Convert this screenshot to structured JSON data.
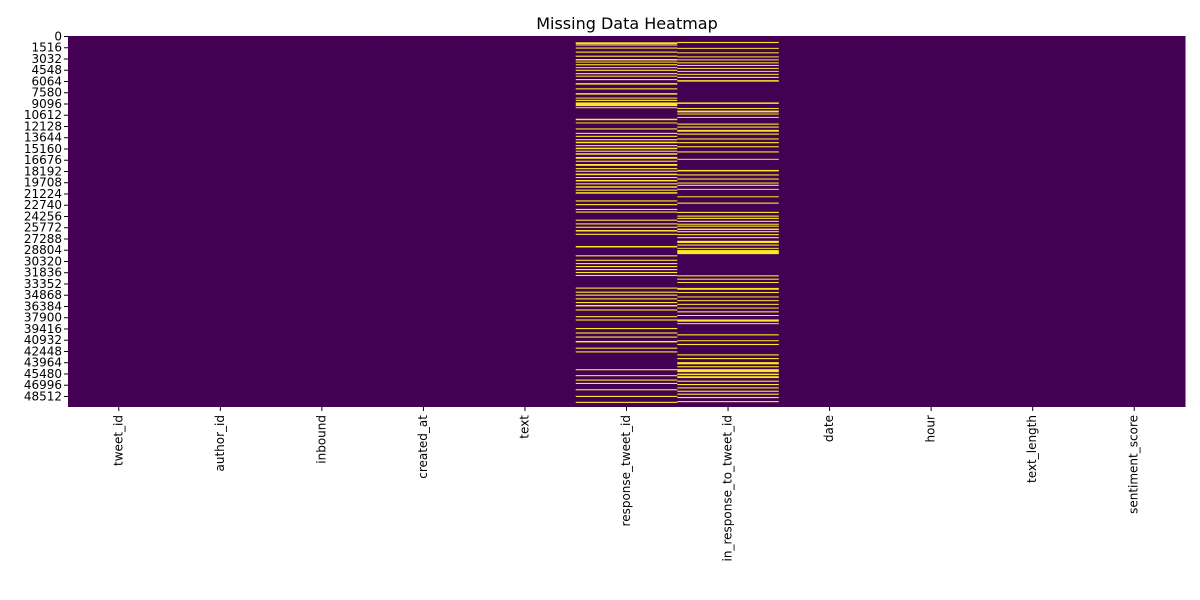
{
  "chart_data": {
    "type": "heatmap",
    "title": "Missing Data Heatmap",
    "xlabel": "",
    "ylabel": "",
    "columns": [
      "tweet_id",
      "author_id",
      "inbound",
      "created_at",
      "text",
      "response_tweet_id",
      "in_response_to_tweet_id",
      "date",
      "hour",
      "text_length",
      "sentiment_score"
    ],
    "y_ticks": [
      "0",
      "1516",
      "3032",
      "4548",
      "6064",
      "7580",
      "9096",
      "10612",
      "12128",
      "13644",
      "15160",
      "16676",
      "18192",
      "19708",
      "21224",
      "22740",
      "24256",
      "25772",
      "27288",
      "28804",
      "30320",
      "31836",
      "33352",
      "34868",
      "36384",
      "37900",
      "39416",
      "40932",
      "42448",
      "43964",
      "45480",
      "46996",
      "48512"
    ],
    "ylim": [
      0,
      50000
    ],
    "row_step": 1516,
    "colors": {
      "present": "#440154",
      "missing": "#fde725"
    },
    "colorbar": false,
    "missing_rows": {
      "response_tweet_id": [
        [
          850,
          1100
        ],
        [
          1150,
          1250
        ],
        [
          1550,
          1700
        ],
        [
          2100,
          2250
        ],
        [
          2650,
          2800
        ],
        [
          3100,
          3300
        ],
        [
          3450,
          3550
        ],
        [
          3800,
          3950
        ],
        [
          4200,
          4300
        ],
        [
          4550,
          4700
        ],
        [
          5000,
          5150
        ],
        [
          5350,
          5450
        ],
        [
          5800,
          5950
        ],
        [
          6350,
          6550
        ],
        [
          7050,
          7200
        ],
        [
          7700,
          7900
        ],
        [
          8300,
          8400
        ],
        [
          8600,
          8750
        ],
        [
          8950,
          9450
        ],
        [
          9600,
          9700
        ],
        [
          11150,
          11350
        ],
        [
          11650,
          11750
        ],
        [
          12450,
          12600
        ],
        [
          13050,
          13200
        ],
        [
          13450,
          13600
        ],
        [
          13900,
          14050
        ],
        [
          14250,
          14450
        ],
        [
          14700,
          14850
        ],
        [
          15050,
          15250
        ],
        [
          15450,
          15600
        ],
        [
          15800,
          16000
        ],
        [
          16300,
          16550
        ],
        [
          16800,
          16950
        ],
        [
          17250,
          17500
        ],
        [
          17800,
          17950
        ],
        [
          18150,
          18300
        ],
        [
          18550,
          18750
        ],
        [
          19000,
          19150
        ],
        [
          19400,
          19600
        ],
        [
          19850,
          20000
        ],
        [
          20250,
          20450
        ],
        [
          20700,
          20850
        ],
        [
          21050,
          21250
        ],
        [
          22150,
          22300
        ],
        [
          22650,
          22800
        ],
        [
          23300,
          23450
        ],
        [
          23650,
          23800
        ],
        [
          24750,
          24900
        ],
        [
          25250,
          25400
        ],
        [
          25700,
          25850
        ],
        [
          26150,
          26350
        ],
        [
          26650,
          26800
        ],
        [
          28300,
          28500
        ],
        [
          29550,
          29700
        ],
        [
          30150,
          30300
        ],
        [
          30600,
          30750
        ],
        [
          31000,
          31150
        ],
        [
          31400,
          31550
        ],
        [
          31800,
          31950
        ],
        [
          32200,
          32350
        ],
        [
          33900,
          34050
        ],
        [
          34450,
          34600
        ],
        [
          34850,
          35000
        ],
        [
          35350,
          35500
        ],
        [
          35850,
          36000
        ],
        [
          36250,
          36450
        ],
        [
          36850,
          37000
        ],
        [
          37750,
          37900
        ],
        [
          38200,
          38350
        ],
        [
          39350,
          39500
        ],
        [
          39950,
          40100
        ],
        [
          40500,
          40650
        ],
        [
          41100,
          41300
        ],
        [
          42000,
          42150
        ],
        [
          42500,
          42650
        ],
        [
          44900,
          45050
        ],
        [
          45700,
          45850
        ],
        [
          46300,
          46450
        ],
        [
          46750,
          46900
        ],
        [
          47600,
          47750
        ],
        [
          48500,
          48650
        ],
        [
          49300,
          49450
        ]
      ],
      "in_response_to_tweet_id": [
        [
          800,
          950
        ],
        [
          1600,
          1700
        ],
        [
          2200,
          2300
        ],
        [
          2750,
          2850
        ],
        [
          3150,
          3250
        ],
        [
          3550,
          3650
        ],
        [
          3900,
          4000
        ],
        [
          4300,
          4400
        ],
        [
          4700,
          4800
        ],
        [
          5100,
          5200
        ],
        [
          5500,
          5650
        ],
        [
          5950,
          6150
        ],
        [
          8950,
          9150
        ],
        [
          9700,
          9800
        ],
        [
          10050,
          10300
        ],
        [
          10450,
          10550
        ],
        [
          10900,
          11000
        ],
        [
          11800,
          11950
        ],
        [
          12200,
          12350
        ],
        [
          12650,
          12900
        ],
        [
          13150,
          13300
        ],
        [
          13800,
          13950
        ],
        [
          14300,
          14450
        ],
        [
          14850,
          15000
        ],
        [
          15550,
          15700
        ],
        [
          16550,
          16650
        ],
        [
          18050,
          18250
        ],
        [
          18650,
          18800
        ],
        [
          19200,
          19350
        ],
        [
          19750,
          19850
        ],
        [
          20050,
          20200
        ],
        [
          20600,
          20700
        ],
        [
          21600,
          21700
        ],
        [
          22450,
          22600
        ],
        [
          23700,
          23850
        ],
        [
          24200,
          24350
        ],
        [
          24500,
          24650
        ],
        [
          24900,
          25050
        ],
        [
          25300,
          25400
        ],
        [
          25550,
          25700
        ],
        [
          25950,
          26150
        ],
        [
          26300,
          26450
        ],
        [
          26700,
          26850
        ],
        [
          27100,
          27250
        ],
        [
          27600,
          27900
        ],
        [
          28100,
          28250
        ],
        [
          28550,
          28650
        ],
        [
          28850,
          29400
        ],
        [
          32250,
          32400
        ],
        [
          32700,
          32850
        ],
        [
          33150,
          33250
        ],
        [
          33950,
          34200
        ],
        [
          34500,
          34600
        ],
        [
          35100,
          35200
        ],
        [
          35600,
          35700
        ],
        [
          36100,
          36200
        ],
        [
          36600,
          36700
        ],
        [
          37100,
          37250
        ],
        [
          37600,
          37700
        ],
        [
          38200,
          38500
        ],
        [
          38700,
          38800
        ],
        [
          40200,
          40350
        ],
        [
          41000,
          41100
        ],
        [
          41500,
          41650
        ],
        [
          42900,
          43050
        ],
        [
          43400,
          43550
        ],
        [
          43950,
          44250
        ],
        [
          44500,
          44650
        ],
        [
          44900,
          45300
        ],
        [
          45500,
          45700
        ],
        [
          45850,
          46100
        ],
        [
          46450,
          46600
        ],
        [
          46900,
          47050
        ],
        [
          47350,
          47500
        ],
        [
          47800,
          47950
        ],
        [
          48200,
          48350
        ],
        [
          48650,
          48800
        ],
        [
          49200,
          49350
        ]
      ]
    }
  }
}
